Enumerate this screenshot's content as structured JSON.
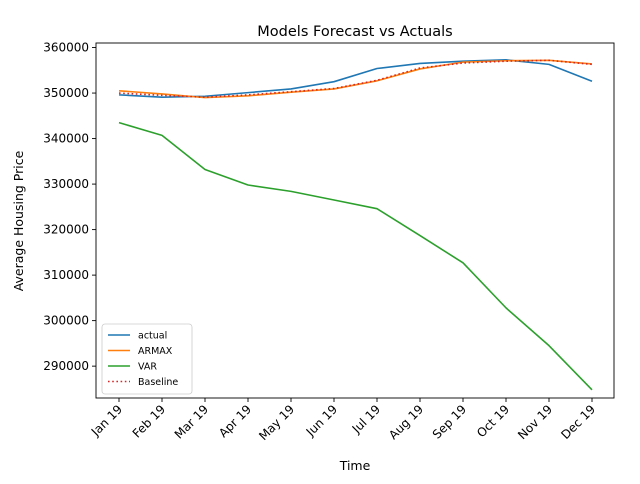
{
  "chart_data": {
    "type": "line",
    "title": "Models Forecast vs Actuals",
    "xlabel": "Time",
    "ylabel": "Average Housing Price",
    "categories": [
      "Jan 19",
      "Feb 19",
      "Mar 19",
      "Apr 19",
      "May 19",
      "Jun 19",
      "Jul 19",
      "Aug 19",
      "Sep 19",
      "Oct 19",
      "Nov 19",
      "Dec 19"
    ],
    "ylim": [
      283000,
      361000
    ],
    "yticks": [
      290000,
      300000,
      310000,
      320000,
      330000,
      340000,
      350000,
      360000
    ],
    "ytick_labels": [
      "290000",
      "300000",
      "310000",
      "320000",
      "330000",
      "340000",
      "350000",
      "360000"
    ],
    "grid": false,
    "legend_position": "lower-left",
    "series": [
      {
        "name": "actual",
        "color": "#1f77b4",
        "style": "solid",
        "values": [
          349600,
          349100,
          349300,
          350100,
          350900,
          352500,
          355400,
          356500,
          357000,
          357300,
          356300,
          352600
        ]
      },
      {
        "name": "ARMAX",
        "color": "#ff7f0e",
        "style": "solid",
        "values": [
          350500,
          349800,
          349000,
          349400,
          350200,
          350900,
          352700,
          355300,
          356800,
          357100,
          357200,
          356400
        ]
      },
      {
        "name": "VAR",
        "color": "#2ca02c",
        "style": "solid",
        "values": [
          343500,
          340700,
          333200,
          329800,
          328400,
          326500,
          324600,
          318700,
          312700,
          302800,
          294500,
          284800
        ]
      },
      {
        "name": "Baseline",
        "color": "#d62728",
        "style": "dotted",
        "values": [
          350000,
          349500,
          349100,
          349600,
          350300,
          351000,
          352800,
          355500,
          356600,
          357000,
          357200,
          356300
        ]
      }
    ]
  }
}
